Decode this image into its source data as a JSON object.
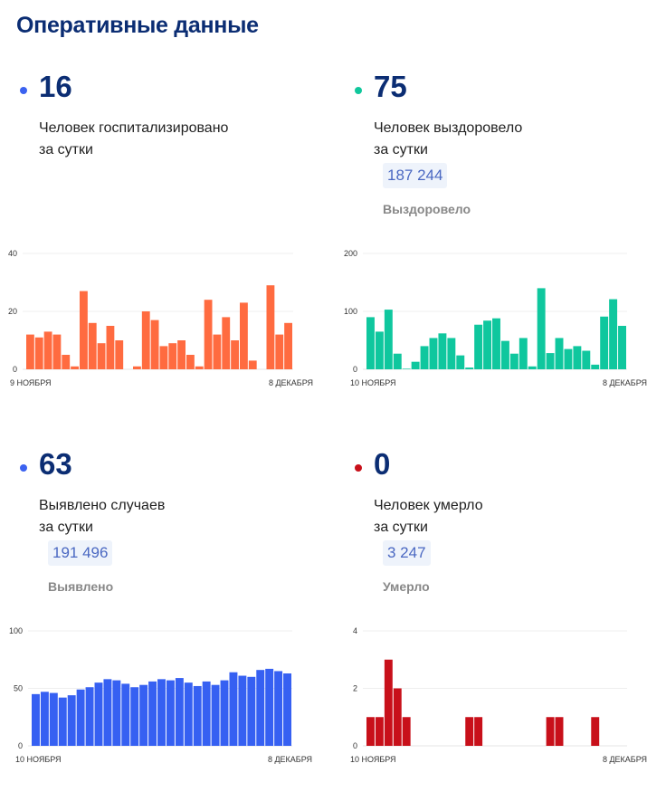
{
  "title": "Оперативные данные",
  "panels": [
    {
      "value": "16",
      "label1": "Человек госпитализировано",
      "label2": "за сутки",
      "color": "#3b62f0"
    },
    {
      "value": "75",
      "label1": "Человек выздоровело",
      "label2": "за сутки",
      "total": "187 244",
      "total_label": "Выздоровело",
      "color": "#10c79c"
    },
    {
      "value": "63",
      "label1": "Выявлено случаев",
      "label2": "за сутки",
      "total": "191 496",
      "total_label": "Выявлено",
      "color": "#3b62f0"
    },
    {
      "value": "0",
      "label1": "Человек умерло",
      "label2": "за сутки",
      "total": "3 247",
      "total_label": "Умерло",
      "color": "#c8101a"
    }
  ],
  "chart_data": [
    {
      "type": "bar",
      "title": "Госпитализировано",
      "color": "#ff6b40",
      "ylim": [
        0,
        40
      ],
      "yticks": [
        "0",
        "20",
        "40"
      ],
      "ytick_values": [
        0,
        20,
        40
      ],
      "x_start": "9 НОЯБРЯ",
      "x_end": "8 ДЕКАБРЯ",
      "values": [
        12,
        11,
        13,
        12,
        5,
        1,
        27,
        16,
        9,
        15,
        10,
        0,
        1,
        20,
        17,
        8,
        9,
        10,
        5,
        1,
        24,
        12,
        18,
        10,
        23,
        3,
        0,
        29,
        12,
        16
      ]
    },
    {
      "type": "bar",
      "title": "Выздоровело",
      "color": "#0fc79e",
      "ylim": [
        0,
        200
      ],
      "yticks": [
        "0",
        "100",
        "200"
      ],
      "ytick_values": [
        0,
        100,
        200
      ],
      "x_start": "10 НОЯБРЯ",
      "x_end": "8 ДЕКАБРЯ",
      "values": [
        90,
        65,
        103,
        27,
        1,
        13,
        40,
        54,
        62,
        54,
        24,
        3,
        77,
        84,
        88,
        49,
        27,
        54,
        5,
        140,
        28,
        54,
        35,
        40,
        32,
        8,
        91,
        121,
        75
      ]
    },
    {
      "type": "bar",
      "title": "Выявлено",
      "color": "#3660f2",
      "ylim": [
        0,
        100
      ],
      "yticks": [
        "0",
        "50",
        "100"
      ],
      "ytick_values": [
        0,
        50,
        100
      ],
      "x_start": "10 НОЯБРЯ",
      "x_end": "8 ДЕКАБРЯ",
      "values": [
        45,
        47,
        46,
        42,
        44,
        49,
        51,
        55,
        58,
        57,
        54,
        51,
        53,
        56,
        58,
        57,
        59,
        55,
        52,
        56,
        53,
        57,
        64,
        61,
        60,
        66,
        67,
        65,
        63
      ]
    },
    {
      "type": "bar",
      "title": "Умерло",
      "color": "#c8101a",
      "ylim": [
        0,
        4
      ],
      "yticks": [
        "0",
        "2",
        "4"
      ],
      "ytick_values": [
        0,
        2,
        4
      ],
      "x_start": "10 НОЯБРЯ",
      "x_end": "8 ДЕКАБРЯ",
      "values": [
        1,
        1,
        3,
        2,
        1,
        0,
        0,
        0,
        0,
        0,
        0,
        1,
        1,
        0,
        0,
        0,
        0,
        0,
        0,
        0,
        1,
        1,
        0,
        0,
        0,
        1,
        0,
        0,
        0
      ]
    }
  ]
}
